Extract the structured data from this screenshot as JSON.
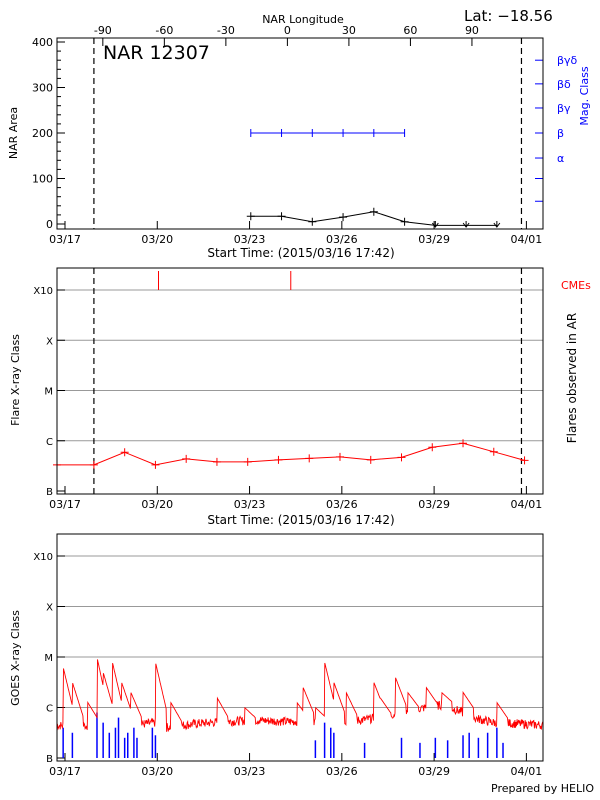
{
  "header": {
    "lat_label": "Lat: −18.56"
  },
  "footer": {
    "credit": "Prepared by HELIO"
  },
  "colors": {
    "axis": "#000000",
    "grid": "#999999",
    "area": "#000000",
    "mag": "#0000ff",
    "flare": "#ff0000",
    "goes_long": "#ff0000",
    "goes_short": "#0000ff"
  },
  "chart_data": [
    {
      "type": "line",
      "panel": "nar",
      "title": "NAR 12307",
      "ylabel": "NAR Area",
      "xlabel": "Start Time: (2015/03/16 17:42)",
      "ylim": [
        0,
        400
      ],
      "yticks": [
        0,
        100,
        200,
        300,
        400
      ],
      "xlim": [
        0,
        15.8
      ],
      "xticks": [
        {
          "x": 0.26,
          "label": "03/17"
        },
        {
          "x": 3.26,
          "label": "03/20"
        },
        {
          "x": 6.26,
          "label": "03/23"
        },
        {
          "x": 9.26,
          "label": "03/26"
        },
        {
          "x": 12.26,
          "label": "03/29"
        },
        {
          "x": 15.26,
          "label": "04/01"
        }
      ],
      "top_axis": {
        "label": "NAR Longitude",
        "ticks": [
          {
            "x": 1.49,
            "label": "-90"
          },
          {
            "x": 3.49,
            "label": "-60"
          },
          {
            "x": 5.49,
            "label": "-30"
          },
          {
            "x": 7.49,
            "label": "0"
          },
          {
            "x": 9.49,
            "label": "30"
          },
          {
            "x": 11.49,
            "label": "60"
          },
          {
            "x": 13.49,
            "label": "90"
          }
        ]
      },
      "right_axis": {
        "label": "Mag. Class",
        "ticks": [
          {
            "value": 145,
            "label": "α"
          },
          {
            "value": 200,
            "label": "β"
          },
          {
            "value": 255,
            "label": "βγ"
          },
          {
            "value": 308,
            "label": "βδ"
          },
          {
            "value": 360,
            "label": "βγδ"
          }
        ]
      },
      "vlines": [
        1.2,
        15.1
      ],
      "series": [
        {
          "role": "area",
          "x": [
            6.3,
            7.3,
            8.3,
            9.3,
            10.3,
            11.3,
            12.3,
            13.3,
            14.3
          ],
          "values": [
            17,
            17,
            5,
            15,
            27,
            5,
            -5,
            -5,
            -5
          ]
        },
        {
          "role": "mag",
          "x": [
            6.3,
            7.3,
            8.3,
            9.3,
            10.3,
            11.3
          ],
          "values": [
            200,
            200,
            200,
            200,
            200,
            200
          ]
        }
      ]
    },
    {
      "type": "line",
      "panel": "flares",
      "ylabel": "Flare X-ray Class",
      "right_label": "Flares observed in AR",
      "xlabel": "Start Time: (2015/03/16 17:42)",
      "ylim": [
        0,
        4
      ],
      "ytick_labels": [
        "B",
        "C",
        "M",
        "X",
        "X10"
      ],
      "xlim": [
        0,
        15.8
      ],
      "xticks": [
        {
          "x": 0.26,
          "label": "03/17"
        },
        {
          "x": 3.26,
          "label": "03/20"
        },
        {
          "x": 6.26,
          "label": "03/23"
        },
        {
          "x": 9.26,
          "label": "03/26"
        },
        {
          "x": 12.26,
          "label": "03/29"
        },
        {
          "x": 15.26,
          "label": "04/01"
        }
      ],
      "vlines": [
        1.2,
        15.1
      ],
      "cme_label": "CMEs",
      "cme_times": [
        3.3,
        7.6
      ],
      "series": [
        {
          "name": "Flares observed in AR",
          "x": [
            0.0,
            1.2,
            2.2,
            3.2,
            4.2,
            5.2,
            6.2,
            7.2,
            8.2,
            9.2,
            10.2,
            11.2,
            12.2,
            13.2,
            14.2,
            15.2
          ],
          "values": [
            0.52,
            0.52,
            0.77,
            0.52,
            0.64,
            0.58,
            0.58,
            0.62,
            0.65,
            0.68,
            0.62,
            0.67,
            0.87,
            0.95,
            0.78,
            0.61
          ]
        }
      ]
    },
    {
      "type": "line",
      "panel": "goes",
      "ylabel": "GOES X-ray Class",
      "ylim": [
        0,
        4
      ],
      "ytick_labels": [
        "B",
        "C",
        "M",
        "X",
        "X10"
      ],
      "xlim": [
        0,
        15.8
      ],
      "xticks": [
        {
          "x": 0.26,
          "label": "03/17"
        },
        {
          "x": 3.26,
          "label": "03/20"
        },
        {
          "x": 6.26,
          "label": "03/23"
        },
        {
          "x": 9.26,
          "label": "03/26"
        },
        {
          "x": 12.26,
          "label": "03/29"
        },
        {
          "x": 15.26,
          "label": "04/01"
        }
      ],
      "series": [
        {
          "role": "long",
          "base": [
            [
              0.0,
              0.65
            ],
            [
              0.5,
              0.62
            ],
            [
              1.0,
              0.65
            ],
            [
              1.5,
              0.72
            ],
            [
              2.5,
              0.65
            ],
            [
              3.2,
              0.7
            ],
            [
              3.5,
              0.6
            ],
            [
              4.5,
              0.68
            ],
            [
              5.5,
              0.72
            ],
            [
              6.5,
              0.75
            ],
            [
              7.5,
              0.72
            ],
            [
              8.5,
              0.74
            ],
            [
              9.5,
              0.72
            ],
            [
              10.5,
              0.8
            ],
            [
              11.5,
              0.95
            ],
            [
              12.5,
              1.05
            ],
            [
              13.0,
              0.95
            ],
            [
              13.5,
              0.8
            ],
            [
              14.2,
              0.7
            ],
            [
              15.0,
              0.68
            ],
            [
              15.8,
              0.65
            ]
          ],
          "spikes": [
            [
              0.2,
              1.8
            ],
            [
              0.5,
              1.5
            ],
            [
              1.0,
              1.1
            ],
            [
              1.3,
              2.0
            ],
            [
              1.5,
              1.7
            ],
            [
              1.8,
              1.9
            ],
            [
              2.1,
              1.5
            ],
            [
              2.4,
              1.3
            ],
            [
              3.2,
              1.9
            ],
            [
              3.7,
              1.1
            ],
            [
              5.2,
              1.2
            ],
            [
              6.1,
              1.0
            ],
            [
              7.8,
              1.1
            ],
            [
              8.0,
              1.4
            ],
            [
              8.4,
              1.0
            ],
            [
              8.7,
              1.9
            ],
            [
              9.0,
              1.5
            ],
            [
              9.4,
              1.3
            ],
            [
              10.3,
              1.5
            ],
            [
              10.5,
              1.2
            ],
            [
              11.0,
              1.6
            ],
            [
              11.4,
              1.3
            ],
            [
              12.0,
              1.4
            ],
            [
              12.5,
              1.3
            ],
            [
              13.2,
              1.3
            ],
            [
              14.3,
              1.1
            ]
          ]
        },
        {
          "role": "short",
          "bars": [
            [
              0.2,
              0.6
            ],
            [
              0.5,
              0.5
            ],
            [
              1.3,
              0.9
            ],
            [
              1.5,
              0.7
            ],
            [
              1.7,
              0.5
            ],
            [
              1.9,
              0.6
            ],
            [
              2.0,
              0.8
            ],
            [
              2.2,
              0.4
            ],
            [
              2.3,
              0.5
            ],
            [
              2.5,
              0.6
            ],
            [
              2.6,
              0.4
            ],
            [
              3.1,
              0.6
            ],
            [
              3.2,
              0.45
            ],
            [
              8.4,
              0.35
            ],
            [
              8.7,
              0.7
            ],
            [
              8.9,
              0.6
            ],
            [
              9.0,
              0.5
            ],
            [
              10.0,
              0.3
            ],
            [
              11.2,
              0.4
            ],
            [
              11.8,
              0.3
            ],
            [
              12.3,
              0.4
            ],
            [
              12.7,
              0.35
            ],
            [
              13.2,
              0.45
            ],
            [
              13.4,
              0.5
            ],
            [
              13.7,
              0.4
            ],
            [
              14.0,
              0.5
            ],
            [
              14.3,
              0.6
            ],
            [
              14.5,
              0.3
            ]
          ]
        }
      ]
    }
  ]
}
